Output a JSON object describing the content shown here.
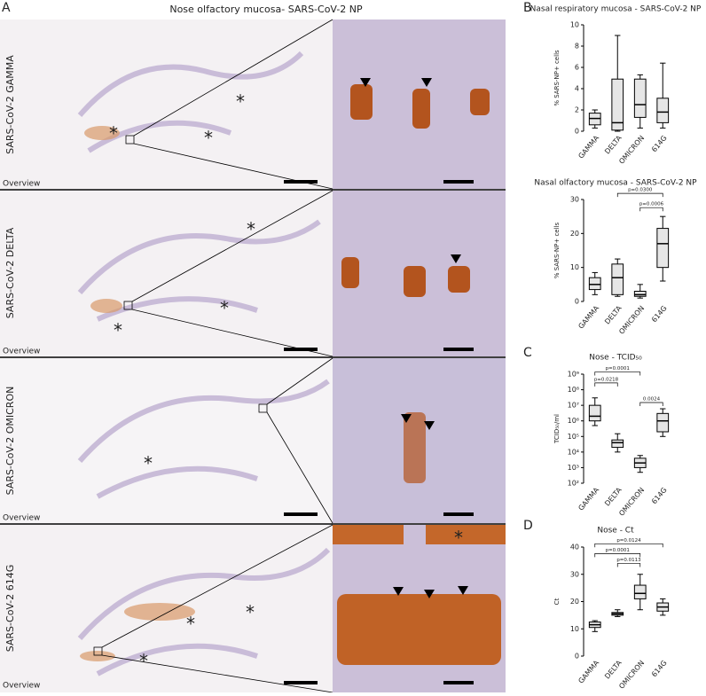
{
  "figure": {
    "letters": [
      "A",
      "B",
      "C",
      "D"
    ],
    "panel_a": {
      "title": "Nose olfactory mucosa- SARS-CoV-2 NP",
      "rows": [
        "SARS-CoV-2 GAMMA",
        "SARS-CoV-2 DELTA",
        "SARS-CoV-2 OMICRON",
        "SARS-CoV-2 614G"
      ],
      "overview": [
        "Overview",
        "Overview",
        "Overview",
        "Overview"
      ]
    }
  },
  "chart_data": [
    {
      "type": "box",
      "title": "Nasal respiratory mucosa - SARS-CoV-2 NP",
      "ylabel": "% SARS-NP+ cells",
      "categories": [
        "GAMMA",
        "DELTA",
        "OMICRON",
        "614G"
      ],
      "boxes": [
        {
          "min": 0.3,
          "q1": 0.6,
          "median": 1.2,
          "q3": 1.7,
          "max": 2.0
        },
        {
          "min": 0,
          "q1": 0.1,
          "median": 0.8,
          "q3": 4.9,
          "max": 9
        },
        {
          "min": 0.3,
          "q1": 1.3,
          "median": 2.5,
          "q3": 4.9,
          "max": 5.3
        },
        {
          "min": 0.3,
          "q1": 0.8,
          "median": 1.8,
          "q3": 3.1,
          "max": 6.4
        }
      ],
      "ylim": [
        0,
        10
      ],
      "yticks": [
        0,
        2,
        4,
        6,
        8,
        10
      ],
      "color": "#000000",
      "annotations": []
    },
    {
      "type": "box",
      "title": "Nasal olfactory mucosa - SARS-CoV-2 NP",
      "ylabel": "% SARS-NP+ cells",
      "categories": [
        "GAMMA",
        "DELTA",
        "OMICRON",
        "614G"
      ],
      "boxes": [
        {
          "min": 2,
          "q1": 3.5,
          "median": 5,
          "q3": 7,
          "max": 8.5
        },
        {
          "min": 1.5,
          "q1": 2,
          "median": 7,
          "q3": 11,
          "max": 12.5
        },
        {
          "min": 1,
          "q1": 1.5,
          "median": 2,
          "q3": 3,
          "max": 5
        },
        {
          "min": 6,
          "q1": 10,
          "median": 17,
          "q3": 21.5,
          "max": 25
        }
      ],
      "ylim": [
        0,
        30
      ],
      "yticks": [
        0,
        10,
        20,
        30
      ],
      "color": "#000000",
      "annotations": [
        "p=0.0300",
        "p=0.0006"
      ]
    },
    {
      "type": "box",
      "title": "Nose - TCID₅₀",
      "ylabel": "TCID₅₀/ml",
      "log_scale": true,
      "categories": [
        "GAMMA",
        "DELTA",
        "OMICRON",
        "614G"
      ],
      "boxes": [
        {
          "min": 500000,
          "q1": 1000000,
          "median": 2000000,
          "q3": 10000000,
          "max": 30000000
        },
        {
          "min": 10000,
          "q1": 20000,
          "median": 40000,
          "q3": 60000,
          "max": 150000
        },
        {
          "min": 500,
          "q1": 1000,
          "median": 2000,
          "q3": 4000,
          "max": 6000
        },
        {
          "min": 100000,
          "q1": 200000,
          "median": 1000000,
          "q3": 3000000,
          "max": 6000000
        }
      ],
      "ylim": [
        100,
        1000000000
      ],
      "yticks": [
        {
          "value": 100,
          "label": "10²"
        },
        {
          "value": 1000,
          "label": "10³"
        },
        {
          "value": 10000,
          "label": "10⁴"
        },
        {
          "value": 100000,
          "label": "10⁵"
        },
        {
          "value": 1000000,
          "label": "10⁶"
        },
        {
          "value": 10000000,
          "label": "10⁷"
        },
        {
          "value": 100000000,
          "label": "10⁸"
        },
        {
          "value": 1000000000,
          "label": "10⁹"
        }
      ],
      "color": "#000000",
      "annotations": [
        "p=0.0001",
        "p=0.0218",
        "0.0024"
      ]
    },
    {
      "type": "box",
      "title": "Nose - Ct",
      "ylabel": "Ct",
      "categories": [
        "GAMMA",
        "DELTA",
        "OMICRON",
        "614G"
      ],
      "boxes": [
        {
          "min": 9,
          "q1": 10.5,
          "median": 11.5,
          "q3": 12.5,
          "max": 13
        },
        {
          "min": 14.5,
          "q1": 15,
          "median": 15.5,
          "q3": 16,
          "max": 17
        },
        {
          "min": 17,
          "q1": 21,
          "median": 23,
          "q3": 26,
          "max": 30
        },
        {
          "min": 15,
          "q1": 16.5,
          "median": 18,
          "q3": 19.5,
          "max": 21
        }
      ],
      "ylim": [
        0,
        40
      ],
      "yticks": [
        0,
        10,
        20,
        30,
        40
      ],
      "color": "#000000",
      "annotations": [
        "p=0.0124",
        "p=0.0001",
        "p=0.0113"
      ]
    }
  ]
}
